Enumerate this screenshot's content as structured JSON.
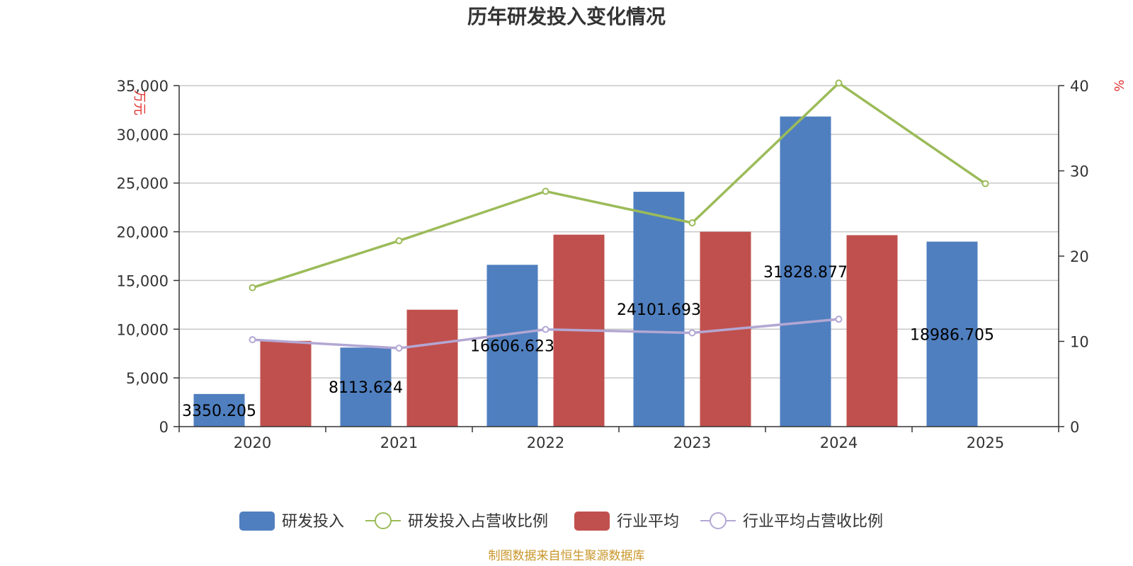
{
  "chart_data": {
    "type": "bar",
    "title": "历年研发投入变化情况",
    "categories": [
      "2020",
      "2021",
      "2022",
      "2023",
      "2024",
      "2025"
    ],
    "series": [
      {
        "name": "研发投入",
        "kind": "bar",
        "axis": "left",
        "values": [
          3350.205,
          8113.624,
          16606.623,
          24101.693,
          31828.877,
          18986.705
        ],
        "labels": [
          "3350.205",
          "8113.624",
          "16606.623",
          "24101.693",
          "31828.877",
          "18986.705"
        ],
        "color": "#4f7fbf"
      },
      {
        "name": "研发投入占营收比例",
        "kind": "line",
        "axis": "right",
        "values": [
          16.3,
          21.8,
          27.6,
          23.9,
          40.3,
          28.5
        ],
        "color": "#9bbb59"
      },
      {
        "name": "行业平均",
        "kind": "bar",
        "axis": "left",
        "values": [
          8800,
          12000,
          19700,
          20000,
          19650,
          null
        ],
        "color": "#c0504d"
      },
      {
        "name": "行业平均占营收比例",
        "kind": "line",
        "axis": "right",
        "values": [
          10.2,
          9.2,
          11.4,
          11.0,
          12.6,
          null
        ],
        "color": "#b3a7d3"
      }
    ],
    "y_left": {
      "label": "万元",
      "ylim": [
        0,
        35000
      ],
      "ticks": [
        "0",
        "5,000",
        "10,000",
        "15,000",
        "20,000",
        "25,000",
        "30,000",
        "35,000"
      ]
    },
    "y_right": {
      "label": "%",
      "ylim": [
        0,
        40
      ],
      "ticks": [
        "0",
        "10",
        "20",
        "30",
        "40"
      ]
    },
    "grid": true,
    "legend_position": "bottom"
  },
  "source": "制图数据来自恒生聚源数据库"
}
